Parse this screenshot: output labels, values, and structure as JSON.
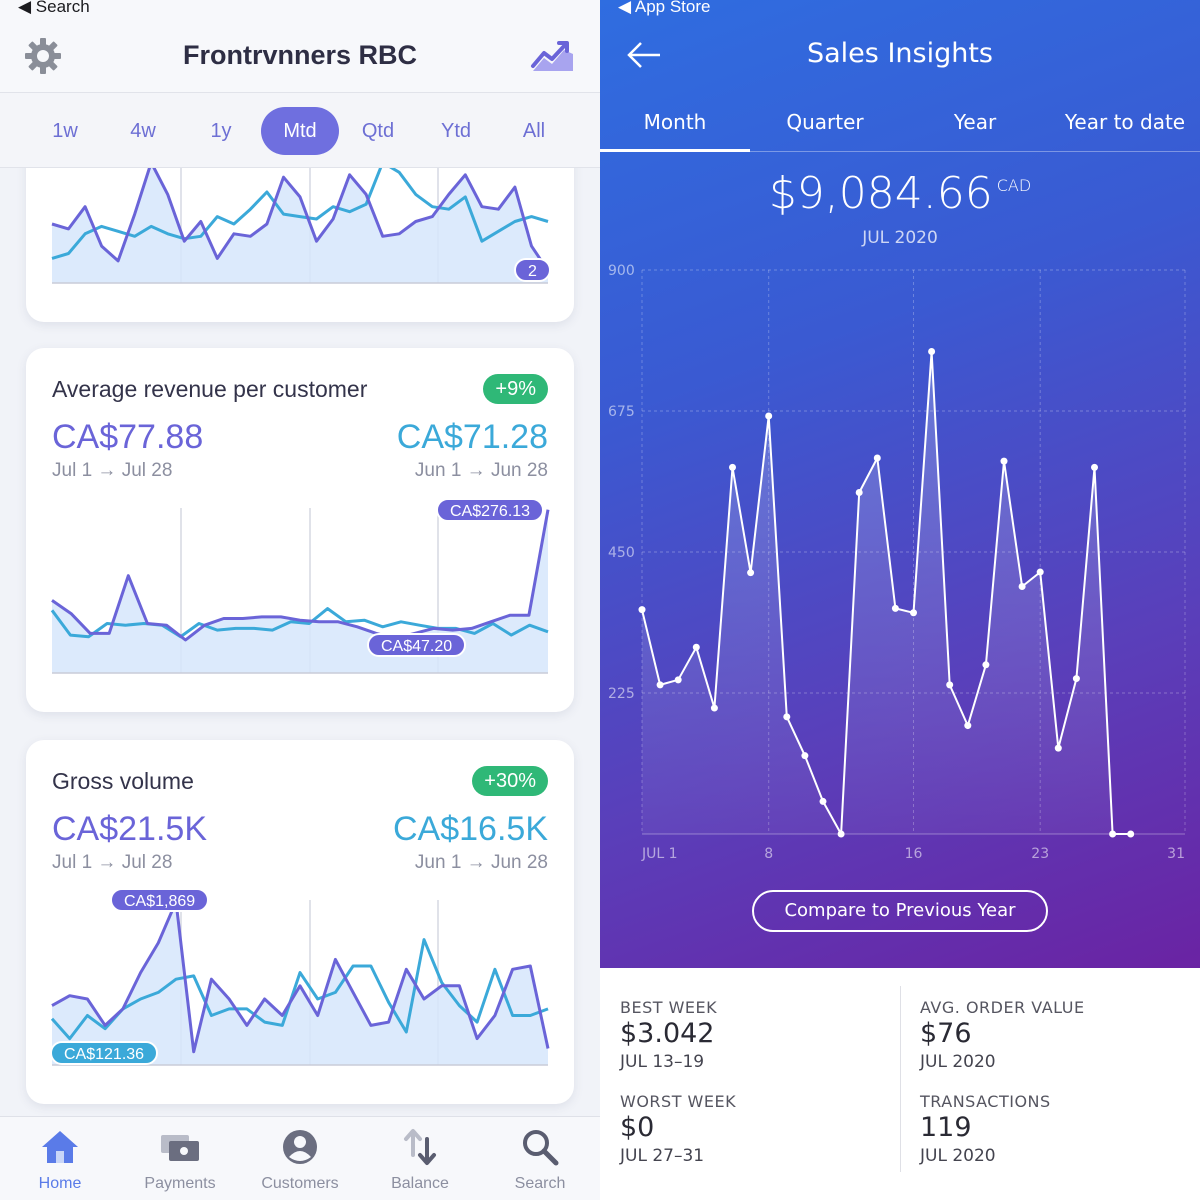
{
  "left": {
    "status_back": "◀ Search",
    "title": "Frontrvnners RBC",
    "periods": [
      "1w",
      "4w",
      "1y",
      "Mtd",
      "Qtd",
      "Ytd",
      "All"
    ],
    "active_period": "Mtd",
    "card_top": {
      "pill": "2",
      "series_current": [
        0.48,
        0.44,
        0.62,
        0.3,
        0.18,
        0.56,
        0.98,
        0.72,
        0.34,
        0.5,
        0.2,
        0.4,
        0.38,
        0.48,
        0.86,
        0.7,
        0.34,
        0.52,
        0.88,
        0.72,
        0.38,
        0.4,
        0.5,
        0.54,
        0.72,
        0.88,
        0.62,
        0.6,
        0.78,
        0.3,
        0.1
      ],
      "series_previous": [
        0.2,
        0.24,
        0.4,
        0.46,
        0.42,
        0.38,
        0.46,
        0.4,
        0.36,
        0.38,
        0.54,
        0.48,
        0.6,
        0.74,
        0.56,
        0.54,
        0.52,
        0.62,
        0.58,
        0.64,
        0.98,
        0.9,
        0.72,
        0.62,
        0.6,
        0.7,
        0.34,
        0.42,
        0.5,
        0.54,
        0.5
      ]
    },
    "card_arpc": {
      "title": "Average revenue per customer",
      "change": "+9%",
      "current_value": "CA$77.88",
      "current_range": "Jul 1 → Jul 28",
      "previous_value": "CA$71.28",
      "previous_range": "Jun 1 → Jun 28",
      "max_label": "CA$276.13",
      "min_label": "CA$47.20",
      "series_current": [
        0.44,
        0.36,
        0.24,
        0.24,
        0.59,
        0.3,
        0.29,
        0.2,
        0.29,
        0.33,
        0.33,
        0.34,
        0.34,
        0.32,
        0.31,
        0.31,
        0.28,
        0.24,
        0.21,
        0.24,
        0.27,
        0.26,
        0.27,
        0.31,
        0.35,
        0.35,
        0.99
      ],
      "series_previous": [
        0.38,
        0.23,
        0.22,
        0.3,
        0.29,
        0.3,
        0.29,
        0.22,
        0.3,
        0.26,
        0.27,
        0.27,
        0.26,
        0.31,
        0.3,
        0.39,
        0.31,
        0.32,
        0.28,
        0.31,
        0.29,
        0.27,
        0.27,
        0.24,
        0.3,
        0.23,
        0.29,
        0.25
      ]
    },
    "card_gross": {
      "title": "Gross volume",
      "change": "+30%",
      "current_value": "CA$21.5K",
      "current_range": "Jul 1 → Jul 28",
      "previous_value": "CA$16.5K",
      "previous_range": "Jun 1 → Jun 28",
      "max_label": "CA$1,869",
      "min_label": "CA$121.36",
      "series_current": [
        0.36,
        0.42,
        0.4,
        0.24,
        0.34,
        0.56,
        0.74,
        0.99,
        0.08,
        0.52,
        0.4,
        0.24,
        0.4,
        0.3,
        0.48,
        0.3,
        0.64,
        0.44,
        0.24,
        0.26,
        0.58,
        0.4,
        0.48,
        0.48,
        0.16,
        0.3,
        0.58,
        0.6,
        0.1
      ],
      "series_previous": [
        0.28,
        0.16,
        0.3,
        0.22,
        0.34,
        0.4,
        0.44,
        0.52,
        0.54,
        0.3,
        0.34,
        0.34,
        0.26,
        0.24,
        0.56,
        0.4,
        0.44,
        0.6,
        0.6,
        0.38,
        0.2,
        0.76,
        0.5,
        0.36,
        0.26,
        0.58,
        0.3,
        0.3,
        0.34
      ]
    },
    "nav": [
      {
        "label": "Home",
        "icon": "home-icon",
        "active": true
      },
      {
        "label": "Payments",
        "icon": "payments-icon",
        "active": false
      },
      {
        "label": "Customers",
        "icon": "customer-icon",
        "active": false
      },
      {
        "label": "Balance",
        "icon": "balance-icon",
        "active": false
      },
      {
        "label": "Search",
        "icon": "search-icon",
        "active": false
      }
    ]
  },
  "right": {
    "status_back": "◀ App Store",
    "title": "Sales Insights",
    "tabs": [
      "Month",
      "Quarter",
      "Year",
      "Year to date"
    ],
    "active_tab": "Month",
    "total": "$9,084.66",
    "total_currency": "CAD",
    "total_period": "JUL 2020",
    "compare_button": "Compare to Previous Year",
    "chart_data": {
      "type": "line",
      "x_ticks": [
        "JUL 1",
        "8",
        "16",
        "23",
        "31"
      ],
      "x_tick_days": [
        1,
        8,
        16,
        23,
        31
      ],
      "y_ticks": [
        225,
        450,
        675,
        900
      ],
      "ylim": [
        0,
        900
      ],
      "x": [
        1,
        2,
        3,
        4,
        5,
        6,
        7,
        8,
        9,
        10,
        11,
        12,
        13,
        14,
        15,
        16,
        17,
        18,
        19,
        20,
        21,
        22,
        23,
        24,
        25,
        26,
        27,
        28
      ],
      "values": [
        358,
        238,
        246,
        298,
        201,
        585,
        417,
        667,
        187,
        125,
        52,
        0,
        545,
        600,
        360,
        353,
        770,
        238,
        173,
        270,
        595,
        395,
        418,
        137,
        248,
        585,
        0,
        0
      ]
    },
    "stats": [
      {
        "label": "BEST WEEK",
        "value": "$3.042",
        "date": "JUL 13–19"
      },
      {
        "label": "AVG. ORDER VALUE",
        "value": "$76",
        "date": "JUL 2020"
      },
      {
        "label": "WORST WEEK",
        "value": "$0",
        "date": "JUL 27–31"
      },
      {
        "label": "TRANSACTIONS",
        "value": "119",
        "date": "JUL 2020"
      }
    ],
    "colors": {
      "line": "#ffffff",
      "grad_start": "#2f6de0",
      "grad_end": "#6a23a3"
    }
  },
  "colors": {
    "purple": "#6a64d8",
    "blue": "#3ba9d9",
    "green": "#2fb877",
    "fill": "#d6e6fb"
  }
}
